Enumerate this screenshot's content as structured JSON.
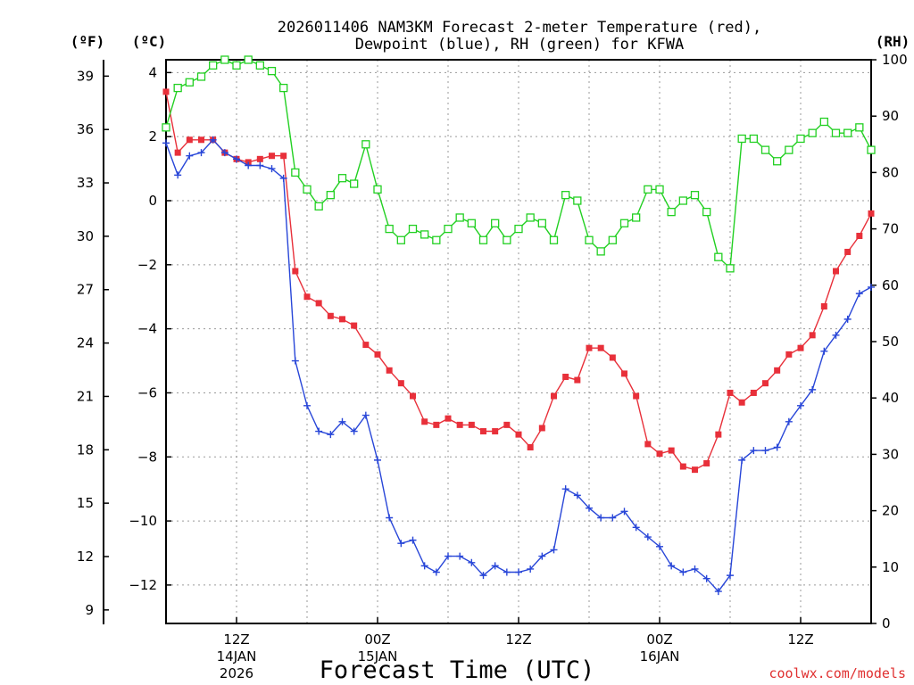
{
  "chart_data": {
    "type": "line",
    "title_line1": "2026011406 NAM3KM Forecast 2-meter Temperature (red),",
    "title_line2": "Dewpoint (blue), RH (green) for KFWA",
    "xlabel": "Forecast Time (UTC)",
    "watermark": "coolwx.com/models",
    "axis_units": {
      "fahrenheit": "(ºF)",
      "celsius": "(ºC)",
      "rh": "(RH)"
    },
    "x_range_hours": [
      6,
      66
    ],
    "celsius_range": [
      -13.2,
      4.4
    ],
    "rh_range": [
      0,
      100
    ],
    "fahrenheit_ticks": [
      "39",
      "36",
      "33",
      "30",
      "27",
      "24",
      "21",
      "18",
      "15",
      "12",
      "9"
    ],
    "fahrenheit_tick_values": [
      39,
      36,
      33,
      30,
      27,
      24,
      21,
      18,
      15,
      12,
      9
    ],
    "celsius_ticks": [
      "4",
      "2",
      "0",
      "−2",
      "−4",
      "−6",
      "−8",
      "−10",
      "−12"
    ],
    "celsius_tick_values": [
      4,
      2,
      0,
      -2,
      -4,
      -6,
      -8,
      -10,
      -12
    ],
    "rh_ticks": [
      "100",
      "90",
      "80",
      "70",
      "60",
      "50",
      "40",
      "30",
      "20",
      "10",
      "0"
    ],
    "rh_tick_values": [
      100,
      90,
      80,
      70,
      60,
      50,
      40,
      30,
      20,
      10,
      0
    ],
    "x_ticks": [
      {
        "hour": 12,
        "label": "12Z",
        "date": "14JAN",
        "year": "2026"
      },
      {
        "hour": 24,
        "label": "00Z",
        "date": "15JAN",
        "year": ""
      },
      {
        "hour": 36,
        "label": "12Z",
        "date": "",
        "year": ""
      },
      {
        "hour": 48,
        "label": "00Z",
        "date": "16JAN",
        "year": ""
      },
      {
        "hour": 60,
        "label": "12Z",
        "date": "",
        "year": ""
      }
    ],
    "series": [
      {
        "name": "Temperature",
        "unit": "C",
        "color": "#e8303a",
        "marker": "filled-square",
        "x": [
          6,
          7,
          8,
          9,
          10,
          11,
          12,
          13,
          14,
          15,
          16,
          17,
          18,
          19,
          20,
          21,
          22,
          23,
          24,
          25,
          26,
          27,
          28,
          29,
          30,
          31,
          32,
          33,
          34,
          35,
          36,
          37,
          38,
          39,
          40,
          41,
          42,
          43,
          44,
          45,
          46,
          47,
          48,
          49,
          50,
          51,
          52,
          53,
          54,
          55,
          56,
          57,
          58,
          59,
          60,
          61,
          62,
          63,
          64,
          65,
          66
        ],
        "values": [
          3.4,
          1.5,
          1.9,
          1.9,
          1.9,
          1.5,
          1.3,
          1.2,
          1.3,
          1.4,
          1.4,
          -2.2,
          -3.0,
          -3.2,
          -3.6,
          -3.7,
          -3.9,
          -4.5,
          -4.8,
          -5.3,
          -5.7,
          -6.1,
          -6.9,
          -7.0,
          -6.8,
          -7.0,
          -7.0,
          -7.2,
          -7.2,
          -7.0,
          -7.3,
          -7.7,
          -7.1,
          -6.1,
          -5.5,
          -5.6,
          -4.6,
          -4.6,
          -4.9,
          -5.4,
          -6.1,
          -7.6,
          -7.9,
          -7.8,
          -8.3,
          -8.4,
          -8.2,
          -7.3,
          -6.0,
          -6.3,
          -6.0,
          -5.7,
          -5.3,
          -4.8,
          -4.6,
          -4.2,
          -3.3,
          -2.2,
          -1.6,
          -1.1,
          -0.4
        ]
      },
      {
        "name": "Dewpoint",
        "unit": "C",
        "color": "#2846d8",
        "marker": "plus",
        "x": [
          6,
          7,
          8,
          9,
          10,
          11,
          12,
          13,
          14,
          15,
          16,
          17,
          18,
          19,
          20,
          21,
          22,
          23,
          24,
          25,
          26,
          27,
          28,
          29,
          30,
          31,
          32,
          33,
          34,
          35,
          36,
          37,
          38,
          39,
          40,
          41,
          42,
          43,
          44,
          45,
          46,
          47,
          48,
          49,
          50,
          51,
          52,
          53,
          54,
          55,
          56,
          57,
          58,
          59,
          60,
          61,
          62,
          63,
          64,
          65,
          66
        ],
        "values": [
          1.8,
          0.8,
          1.4,
          1.5,
          1.9,
          1.5,
          1.3,
          1.1,
          1.1,
          1.0,
          0.7,
          -5.0,
          -6.4,
          -7.2,
          -7.3,
          -6.9,
          -7.2,
          -6.7,
          -8.1,
          -9.9,
          -10.7,
          -10.6,
          -11.4,
          -11.6,
          -11.1,
          -11.1,
          -11.3,
          -11.7,
          -11.4,
          -11.6,
          -11.6,
          -11.5,
          -11.1,
          -10.9,
          -9.0,
          -9.2,
          -9.6,
          -9.9,
          -9.9,
          -9.7,
          -10.2,
          -10.5,
          -10.8,
          -11.4,
          -11.6,
          -11.5,
          -11.8,
          -12.2,
          -11.7,
          -8.1,
          -7.8,
          -7.8,
          -7.7,
          -6.9,
          -6.4,
          -5.9,
          -4.7,
          -4.2,
          -3.7,
          -2.9,
          -2.7
        ]
      },
      {
        "name": "RH",
        "unit": "%",
        "color": "#22d022",
        "marker": "open-square",
        "x": [
          6,
          7,
          8,
          9,
          10,
          11,
          12,
          13,
          14,
          15,
          16,
          17,
          18,
          19,
          20,
          21,
          22,
          23,
          24,
          25,
          26,
          27,
          28,
          29,
          30,
          31,
          32,
          33,
          34,
          35,
          36,
          37,
          38,
          39,
          40,
          41,
          42,
          43,
          44,
          45,
          46,
          47,
          48,
          49,
          50,
          51,
          52,
          53,
          54,
          55,
          56,
          57,
          58,
          59,
          60,
          61,
          62,
          63,
          64,
          65,
          66
        ],
        "values": [
          88,
          95,
          96,
          97,
          99,
          100,
          99,
          100,
          99,
          98,
          95,
          80,
          77,
          74,
          76,
          79,
          78,
          85,
          77,
          70,
          68,
          70,
          69,
          68,
          70,
          72,
          71,
          68,
          71,
          68,
          70,
          72,
          71,
          68,
          76,
          75,
          68,
          66,
          68,
          71,
          72,
          77,
          77,
          73,
          75,
          76,
          73,
          65,
          63,
          86,
          86,
          84,
          82,
          84,
          86,
          87,
          89,
          87,
          87,
          88,
          84
        ]
      }
    ]
  }
}
